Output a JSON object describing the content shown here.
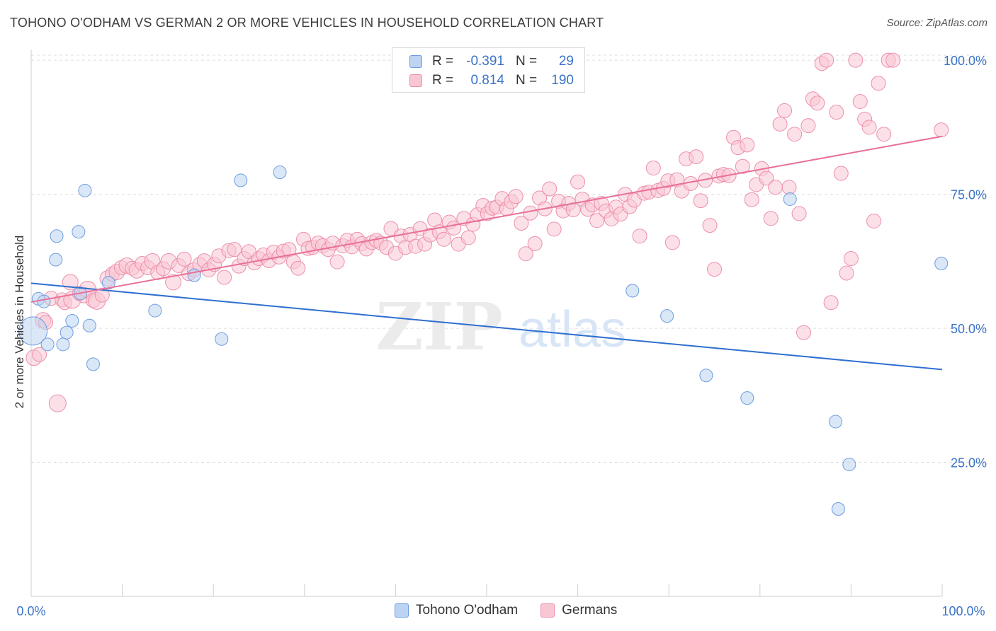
{
  "title": "TOHONO O'ODHAM VS GERMAN 2 OR MORE VEHICLES IN HOUSEHOLD CORRELATION CHART",
  "source": "Source: ZipAtlas.com",
  "watermark": {
    "zip": "ZIP",
    "atlas": "atlas"
  },
  "legend": {
    "r_label": "R =",
    "n_label": "N =",
    "rows": [
      {
        "name": "Tohono O'odham",
        "r": "-0.391",
        "n": "29",
        "color": "#6d9de0"
      },
      {
        "name": "Germans",
        "r": "0.814",
        "n": "190",
        "color": "#ec8fab"
      }
    ]
  },
  "colors": {
    "blue_fill": "#bcd3f1",
    "blue_stroke": "#6d9de0",
    "blue_line": "#2f6fd0",
    "pink_fill": "#f9c6d4",
    "pink_stroke": "#ec8fab",
    "pink_line": "#e8709a",
    "tick_label": "#3a73c8",
    "grid": "#dddddd"
  },
  "chart_data": {
    "type": "scatter",
    "title": "TOHONO O'ODHAM VS GERMAN 2 OR MORE VEHICLES IN HOUSEHOLD CORRELATION CHART",
    "xlabel": "",
    "ylabel": "2 or more Vehicles in Household",
    "xlim": [
      0,
      100
    ],
    "ylim": [
      0,
      102
    ],
    "x_tick_labels": [
      "0.0%",
      "100.0%"
    ],
    "y_ticks": [
      25,
      50,
      75,
      100
    ],
    "y_tick_labels": [
      "25.0%",
      "50.0%",
      "75.0%",
      "100.0%"
    ],
    "grid": true,
    "legend_position": "top-center",
    "series": [
      {
        "name": "Tohono O'odham",
        "trend": [
          [
            0,
            58.4
          ],
          [
            100,
            42.3
          ]
        ],
        "points": [
          [
            0.2,
            49.5,
            20
          ],
          [
            0.8,
            55.5,
            9
          ],
          [
            1.4,
            55,
            9
          ],
          [
            1.8,
            47,
            9
          ],
          [
            2.7,
            62.8,
            9
          ],
          [
            2.8,
            67.2,
            9
          ],
          [
            3.5,
            47,
            9
          ],
          [
            3.9,
            49.2,
            9
          ],
          [
            4.5,
            51.4,
            9
          ],
          [
            5.2,
            68,
            9
          ],
          [
            5.4,
            56.5,
            9
          ],
          [
            5.9,
            75.7,
            9
          ],
          [
            6.4,
            50.5,
            9
          ],
          [
            6.8,
            43.3,
            9
          ],
          [
            8.5,
            58.5,
            9
          ],
          [
            13.6,
            53.3,
            9
          ],
          [
            17.9,
            59.9,
            9
          ],
          [
            20.9,
            48,
            9
          ],
          [
            23,
            77.6,
            9
          ],
          [
            27.3,
            79.1,
            9
          ],
          [
            66,
            57,
            9
          ],
          [
            69.8,
            52.3,
            9
          ],
          [
            74.1,
            41.2,
            9
          ],
          [
            78.6,
            37,
            9
          ],
          [
            83.3,
            74.1,
            9
          ],
          [
            88.3,
            32.6,
            9
          ],
          [
            89.8,
            24.6,
            9
          ],
          [
            88.6,
            16.3,
            9
          ],
          [
            99.9,
            62.1,
            9
          ]
        ]
      },
      {
        "name": "Germans",
        "trend": [
          [
            0,
            54.9
          ],
          [
            100,
            85.8
          ]
        ],
        "points": [
          [
            0.3,
            44.5,
            11
          ],
          [
            0.9,
            45.1,
            10
          ],
          [
            1.3,
            51.5,
            11
          ],
          [
            1.6,
            51.1,
            10
          ],
          [
            2.2,
            55.6,
            10
          ],
          [
            2.9,
            36,
            12
          ],
          [
            3.4,
            55.3,
            10
          ],
          [
            3.7,
            54.8,
            10
          ],
          [
            4.3,
            58.6,
            11
          ],
          [
            4.5,
            55.3,
            12
          ],
          [
            5.3,
            56.5,
            10
          ],
          [
            5.8,
            56.2,
            11
          ],
          [
            6.2,
            57.2,
            12
          ],
          [
            6.8,
            55.2,
            10
          ],
          [
            7.2,
            55.1,
            12
          ],
          [
            7.8,
            56.2,
            10
          ],
          [
            8.4,
            59.3,
            11
          ],
          [
            8.9,
            60.1,
            10
          ],
          [
            9.4,
            60.5,
            11
          ],
          [
            9.9,
            61.3,
            10
          ],
          [
            10.5,
            61.7,
            11
          ],
          [
            11.1,
            61.2,
            10
          ],
          [
            11.6,
            60.8,
            11
          ],
          [
            12.2,
            62.1,
            10
          ],
          [
            12.8,
            61.3,
            10
          ],
          [
            13.3,
            62.5,
            11
          ],
          [
            13.9,
            60.4,
            10
          ],
          [
            14.5,
            61.1,
            10
          ],
          [
            15.1,
            62.5,
            11
          ],
          [
            15.6,
            58.6,
            11
          ],
          [
            16.2,
            61.7,
            10
          ],
          [
            16.8,
            62.9,
            10
          ],
          [
            17.3,
            60.2,
            10
          ],
          [
            17.9,
            60.9,
            10
          ],
          [
            18.5,
            61.9,
            10
          ],
          [
            19,
            62.6,
            10
          ],
          [
            19.5,
            60.9,
            10
          ],
          [
            20.1,
            61.9,
            10
          ],
          [
            20.6,
            63.5,
            10
          ],
          [
            21.2,
            59.5,
            10
          ],
          [
            21.7,
            64.5,
            10
          ],
          [
            22.3,
            64.7,
            10
          ],
          [
            22.8,
            61.6,
            10
          ],
          [
            23.4,
            63,
            10
          ],
          [
            23.9,
            64.3,
            10
          ],
          [
            24.5,
            62.2,
            10
          ],
          [
            25,
            63,
            10
          ],
          [
            25.5,
            63.7,
            10
          ],
          [
            26.1,
            62.6,
            10
          ],
          [
            26.6,
            64.2,
            10
          ],
          [
            27.2,
            63.3,
            10
          ],
          [
            27.7,
            64.4,
            10
          ],
          [
            28.3,
            64.7,
            10
          ],
          [
            28.8,
            62.4,
            10
          ],
          [
            29.3,
            61.2,
            10
          ],
          [
            29.9,
            66.6,
            10
          ],
          [
            30.4,
            64.9,
            10
          ],
          [
            30.9,
            65.1,
            10
          ],
          [
            31.5,
            65.9,
            10
          ],
          [
            32,
            65.4,
            10
          ],
          [
            32.6,
            64.7,
            10
          ],
          [
            33.1,
            65.9,
            10
          ],
          [
            33.6,
            62.4,
            10
          ],
          [
            34.2,
            65.4,
            10
          ],
          [
            34.7,
            66.4,
            10
          ],
          [
            35.2,
            65.2,
            10
          ],
          [
            35.8,
            66.6,
            10
          ],
          [
            36.3,
            65.8,
            10
          ],
          [
            36.8,
            64.8,
            10
          ],
          [
            37.4,
            66,
            10
          ],
          [
            37.9,
            66.4,
            10
          ],
          [
            38.4,
            65.9,
            10
          ],
          [
            39,
            65.1,
            10
          ],
          [
            39.5,
            68.6,
            10
          ],
          [
            40,
            64,
            10
          ],
          [
            40.6,
            67.2,
            10
          ],
          [
            41.1,
            65.1,
            10
          ],
          [
            41.6,
            67.5,
            10
          ],
          [
            42.2,
            65.3,
            10
          ],
          [
            42.7,
            68.6,
            10
          ],
          [
            43.2,
            65.7,
            10
          ],
          [
            43.8,
            67.4,
            10
          ],
          [
            44.3,
            70.2,
            10
          ],
          [
            44.8,
            68,
            10
          ],
          [
            45.3,
            66.6,
            10
          ],
          [
            45.9,
            69.8,
            10
          ],
          [
            46.4,
            68.7,
            10
          ],
          [
            46.9,
            65.7,
            10
          ],
          [
            47.5,
            70.5,
            10
          ],
          [
            48,
            66.9,
            10
          ],
          [
            48.5,
            69.4,
            10
          ],
          [
            49,
            71.2,
            10
          ],
          [
            49.6,
            72.9,
            10
          ],
          [
            50.1,
            71.4,
            10
          ],
          [
            50.6,
            72.4,
            10
          ],
          [
            51.1,
            72.6,
            10
          ],
          [
            51.7,
            74.2,
            10
          ],
          [
            52.2,
            72.3,
            10
          ],
          [
            52.7,
            73.6,
            10
          ],
          [
            53.2,
            74.6,
            10
          ],
          [
            53.8,
            69.6,
            10
          ],
          [
            54.3,
            63.9,
            10
          ],
          [
            54.8,
            71.5,
            10
          ],
          [
            55.3,
            65.8,
            10
          ],
          [
            55.8,
            74.3,
            10
          ],
          [
            56.4,
            72.3,
            10
          ],
          [
            56.9,
            76,
            10
          ],
          [
            57.4,
            68.5,
            10
          ],
          [
            57.9,
            73.7,
            10
          ],
          [
            58.4,
            71.9,
            10
          ],
          [
            59,
            73.3,
            10
          ],
          [
            59.5,
            72.1,
            10
          ],
          [
            60,
            77.3,
            10
          ],
          [
            60.5,
            74.1,
            10
          ],
          [
            61.1,
            72.2,
            10
          ],
          [
            61.6,
            73,
            10
          ],
          [
            62.1,
            70.1,
            10
          ],
          [
            62.6,
            73.3,
            10
          ],
          [
            63.1,
            71.9,
            10
          ],
          [
            63.7,
            70.4,
            10
          ],
          [
            64.2,
            72.6,
            10
          ],
          [
            64.7,
            71.3,
            10
          ],
          [
            65.2,
            75,
            10
          ],
          [
            65.7,
            72.7,
            10
          ],
          [
            66.2,
            73.9,
            10
          ],
          [
            66.8,
            67.2,
            10
          ],
          [
            67.3,
            75.2,
            10
          ],
          [
            67.8,
            75.4,
            10
          ],
          [
            68.3,
            79.9,
            10
          ],
          [
            68.8,
            75.7,
            10
          ],
          [
            69.4,
            76.1,
            10
          ],
          [
            69.9,
            77.5,
            10
          ],
          [
            70.4,
            66,
            10
          ],
          [
            70.9,
            77.7,
            10
          ],
          [
            71.4,
            75.6,
            10
          ],
          [
            71.9,
            81.6,
            10
          ],
          [
            72.4,
            77,
            10
          ],
          [
            73,
            82,
            10
          ],
          [
            73.5,
            73.8,
            10
          ],
          [
            74,
            77.6,
            10
          ],
          [
            74.5,
            69.2,
            10
          ],
          [
            75,
            61,
            10
          ],
          [
            75.5,
            78.4,
            10
          ],
          [
            76,
            78.7,
            10
          ],
          [
            76.6,
            78.5,
            10
          ],
          [
            77.1,
            85.6,
            10
          ],
          [
            77.6,
            83.7,
            10
          ],
          [
            78.1,
            80.2,
            10
          ],
          [
            78.6,
            84.2,
            10
          ],
          [
            79.1,
            74,
            10
          ],
          [
            79.6,
            76.8,
            10
          ],
          [
            80.2,
            79.8,
            10
          ],
          [
            80.7,
            78,
            10
          ],
          [
            81.2,
            70.5,
            10
          ],
          [
            81.7,
            76.3,
            10
          ],
          [
            82.2,
            88.1,
            10
          ],
          [
            82.7,
            90.6,
            10
          ],
          [
            83.2,
            76.3,
            10
          ],
          [
            83.8,
            86.2,
            10
          ],
          [
            84.3,
            71.4,
            10
          ],
          [
            84.8,
            49.2,
            10
          ],
          [
            85.3,
            87.8,
            10
          ],
          [
            85.8,
            92.8,
            10
          ],
          [
            86.3,
            92,
            10
          ],
          [
            86.8,
            99.4,
            10
          ],
          [
            87.3,
            100,
            10
          ],
          [
            87.8,
            54.8,
            10
          ],
          [
            88.4,
            90.3,
            10
          ],
          [
            88.9,
            78.9,
            10
          ],
          [
            89.5,
            60.3,
            10
          ],
          [
            90,
            63,
            10
          ],
          [
            90.5,
            100,
            10
          ],
          [
            91,
            92.3,
            10
          ],
          [
            91.5,
            89,
            10
          ],
          [
            92,
            87.5,
            10
          ],
          [
            92.5,
            70,
            10
          ],
          [
            93,
            95.7,
            10
          ],
          [
            93.6,
            86.2,
            10
          ],
          [
            94.1,
            100,
            10
          ],
          [
            94.6,
            100,
            10
          ],
          [
            99.9,
            87,
            10
          ]
        ]
      }
    ]
  }
}
